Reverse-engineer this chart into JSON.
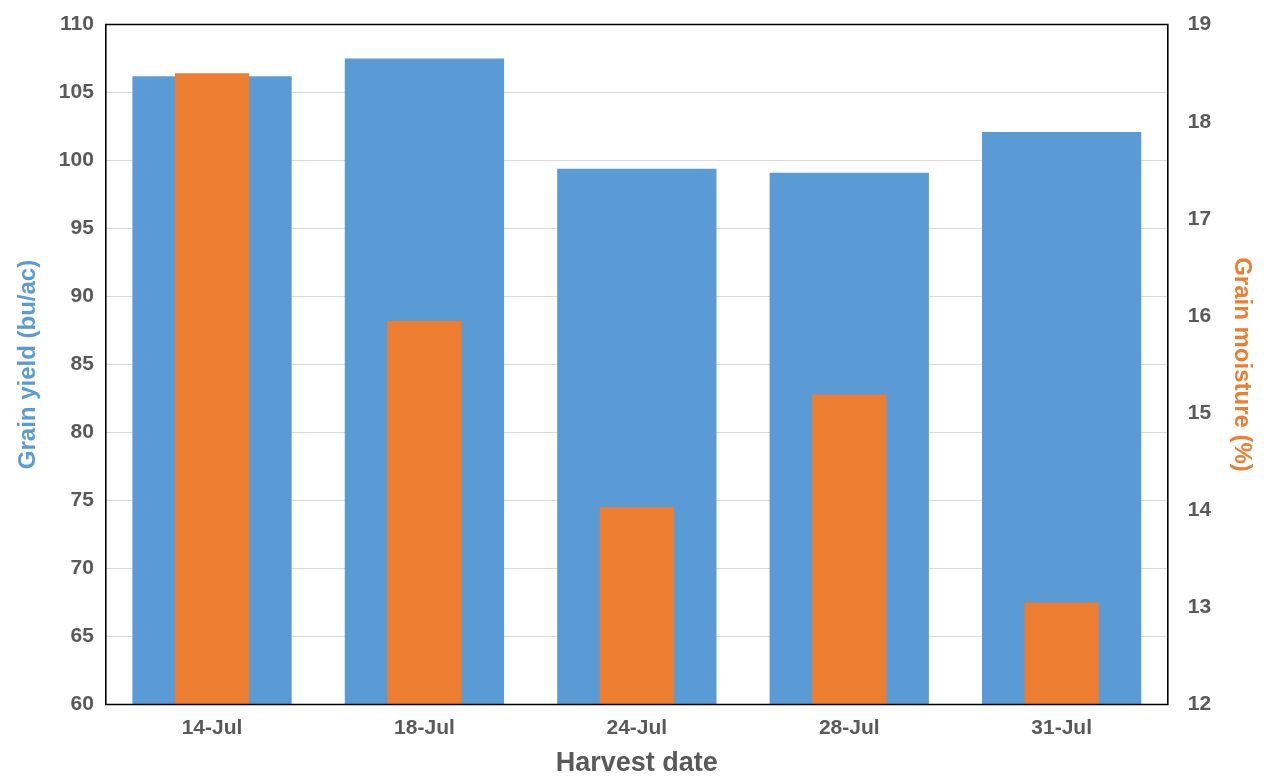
{
  "chart_data": {
    "type": "bar",
    "xlabel": "Harvest date",
    "ylabel": "Grain yield (bu/ac)",
    "y2label": "Grain moisture (%)",
    "categories": [
      "14-Jul",
      "18-Jul",
      "24-Jul",
      "28-Jul",
      "31-Jul"
    ],
    "series": [
      {
        "color": "#5b9bd5",
        "values": [
          106.2,
          107.5,
          99.4,
          99.1,
          102.1
        ]
      },
      {
        "color": "#ed7d31",
        "axis": "y2",
        "values": [
          18.5,
          15.95,
          14.03,
          15.19,
          13.05
        ]
      }
    ],
    "ylim": [
      60,
      110
    ],
    "yticks": [
      60,
      65,
      70,
      75,
      80,
      85,
      90,
      95,
      100,
      105,
      110
    ],
    "y2lim": [
      12,
      19
    ],
    "y2ticks": [
      12,
      13,
      14,
      15,
      16,
      17,
      18,
      19
    ],
    "grid": "y",
    "legend": false
  }
}
